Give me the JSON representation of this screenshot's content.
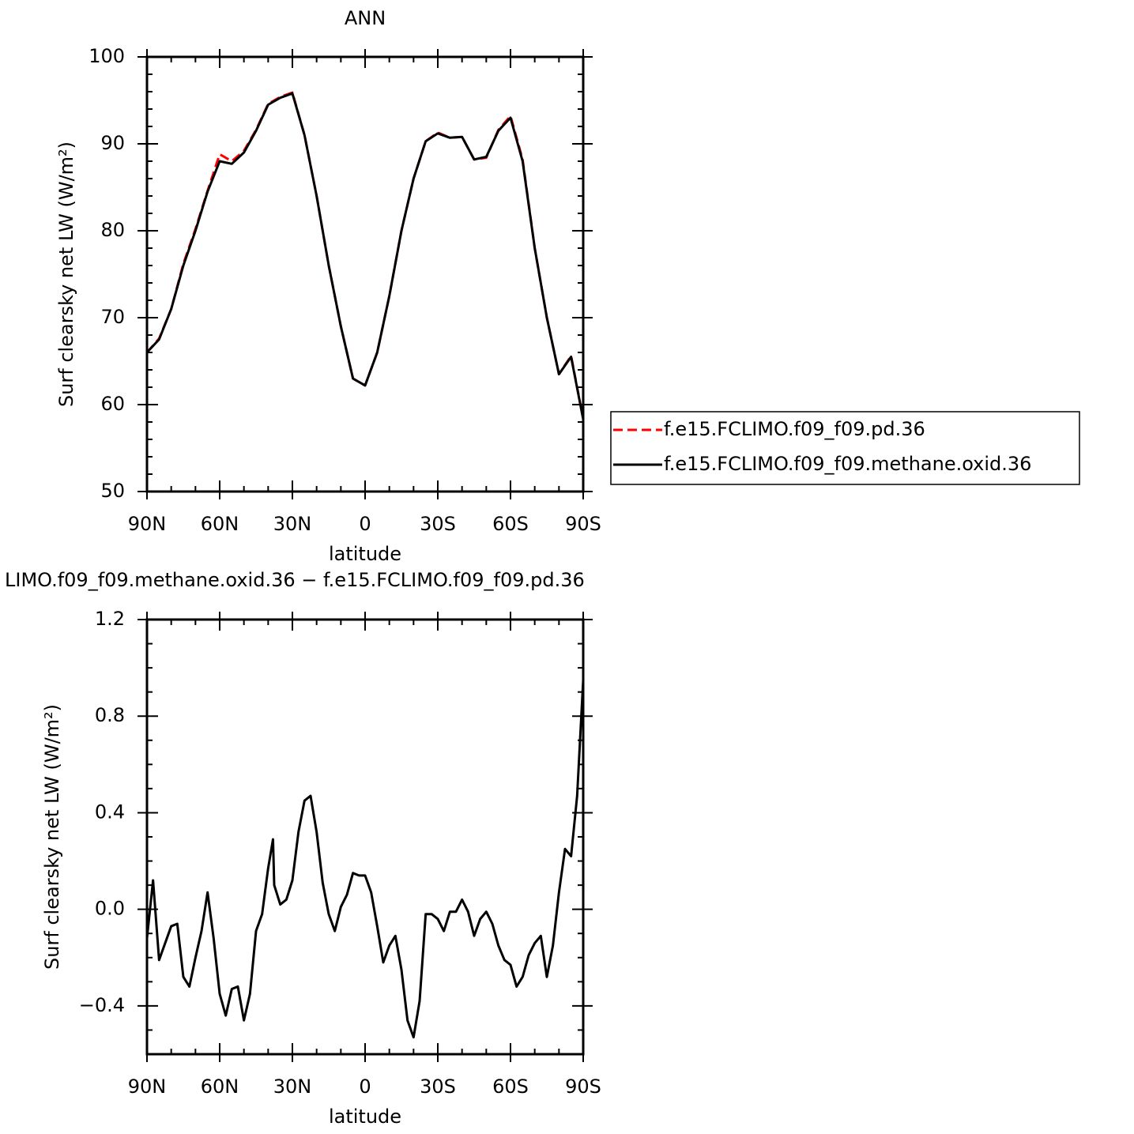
{
  "chart_data": [
    {
      "type": "line",
      "title": "ANN",
      "x_label": "latitude",
      "y_label": "Surf clearsky net LW (W/m²)",
      "x": [
        90,
        85,
        80,
        75,
        70,
        65,
        60,
        55,
        50,
        45,
        40,
        35,
        30,
        25,
        20,
        15,
        10,
        5,
        0,
        -5,
        -10,
        -15,
        -20,
        -25,
        -30,
        -35,
        -40,
        -45,
        -50,
        -55,
        -60,
        -65,
        -70,
        -75,
        -80,
        -85,
        -90
      ],
      "xlim": [
        90,
        -90
      ],
      "xticks": [
        {
          "value": 90,
          "label": "90N"
        },
        {
          "value": 60,
          "label": "60N"
        },
        {
          "value": 30,
          "label": "30N"
        },
        0,
        {
          "value": -30,
          "label": "30S"
        },
        {
          "value": -60,
          "label": "60S"
        },
        {
          "value": -90,
          "label": "90S"
        }
      ],
      "ylim": [
        50,
        100
      ],
      "yticks": [
        50,
        60,
        70,
        80,
        90,
        100
      ],
      "legend": "right",
      "series": [
        {
          "name": "f.e15.FCLIMO.f09_f09.pd.36",
          "color": "#ff0000",
          "linestyle": "dashed",
          "values": [
            66,
            67.6,
            71,
            76.2,
            80.2,
            84.6,
            88.8,
            88,
            89.2,
            91.6,
            94.6,
            95.4,
            95.9,
            91,
            84,
            76,
            69,
            63,
            62.2,
            66,
            72.5,
            80,
            86,
            90.3,
            91.3,
            90.7,
            90.8,
            88.2,
            88.4,
            91.6,
            93.2,
            88.2,
            78,
            70,
            63.5,
            65.6,
            58.4
          ]
        },
        {
          "name": "f.e15.FCLIMO.f09_f09.methane.oxid.36",
          "color": "#000000",
          "linestyle": "solid",
          "values": [
            66,
            67.5,
            71,
            76,
            80,
            84.5,
            88,
            87.7,
            89,
            91.5,
            94.5,
            95.3,
            95.8,
            91,
            84,
            76,
            69,
            63,
            62.2,
            66,
            72.5,
            80,
            86,
            90.3,
            91.2,
            90.7,
            90.8,
            88.2,
            88.5,
            91.5,
            93,
            88,
            78,
            70,
            63.5,
            65.5,
            58.3
          ]
        }
      ]
    },
    {
      "type": "line",
      "title": "LIMO.f09_f09.methane.oxid.36 − f.e15.FCLIMO.f09_f09.pd.36",
      "x_label": "latitude",
      "y_label": "Surf clearsky net LW (W/m²)",
      "x": [
        90,
        87.5,
        85,
        82.5,
        80,
        77.5,
        75,
        72.5,
        70,
        67.5,
        65,
        62.5,
        60,
        57.5,
        55,
        52.5,
        50,
        47.5,
        45,
        42.5,
        40,
        38,
        37.5,
        35,
        32.5,
        30,
        27.5,
        25,
        22.5,
        20,
        17.5,
        15,
        12.5,
        10,
        7.5,
        5,
        2.5,
        0,
        -2.5,
        -5,
        -7.5,
        -10,
        -12.5,
        -15,
        -17.5,
        -20,
        -22.5,
        -25,
        -27.5,
        -30,
        -32.5,
        -35,
        -37.5,
        -40,
        -42.5,
        -45,
        -47.5,
        -50,
        -52.5,
        -55,
        -57.5,
        -60,
        -62.5,
        -65,
        -67.5,
        -70,
        -72.5,
        -75,
        -77.5,
        -80,
        -82.5,
        -85,
        -87.5,
        -90
      ],
      "xlim": [
        90,
        -90
      ],
      "xticks": [
        {
          "value": 90,
          "label": "90N"
        },
        {
          "value": 60,
          "label": "60N"
        },
        {
          "value": 30,
          "label": "30N"
        },
        0,
        {
          "value": -30,
          "label": "30S"
        },
        {
          "value": -60,
          "label": "60S"
        },
        {
          "value": -90,
          "label": "90S"
        }
      ],
      "ylim": [
        -0.6,
        1.2
      ],
      "yticks": [
        {
          "value": -0.4,
          "label": "−0.4"
        },
        {
          "value": 0,
          "label": "0.0"
        },
        0.4,
        0.8,
        1.2
      ],
      "series": [
        {
          "color": "#000000",
          "linestyle": "solid",
          "values": [
            -0.12,
            0.12,
            -0.21,
            -0.14,
            -0.07,
            -0.06,
            -0.28,
            -0.32,
            -0.2,
            -0.09,
            0.07,
            -0.12,
            -0.35,
            -0.44,
            -0.33,
            -0.32,
            -0.46,
            -0.35,
            -0.09,
            -0.02,
            0.17,
            0.29,
            0.1,
            0.02,
            0.04,
            0.12,
            0.32,
            0.45,
            0.47,
            0.32,
            0.11,
            -0.02,
            -0.09,
            0.01,
            0.06,
            0.15,
            0.14,
            0.14,
            0.07,
            -0.07,
            -0.22,
            -0.15,
            -0.11,
            -0.25,
            -0.46,
            -0.53,
            -0.38,
            -0.02,
            -0.02,
            -0.04,
            -0.09,
            -0.01,
            -0.01,
            0.04,
            -0.01,
            -0.11,
            -0.04,
            -0.01,
            -0.06,
            -0.15,
            -0.21,
            -0.23,
            -0.32,
            -0.28,
            -0.19,
            -0.14,
            -0.11,
            -0.28,
            -0.15,
            0.07,
            0.25,
            0.22,
            0.47,
            0.95
          ]
        }
      ]
    }
  ]
}
